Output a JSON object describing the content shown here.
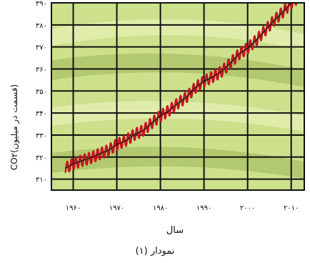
{
  "chart_data": {
    "type": "line",
    "title": "",
    "xlabel": "سال",
    "ylabel": "CO۲(قسمت در میلیون)",
    "xlim": [
      1955,
      2013
    ],
    "ylim": [
      305,
      390
    ],
    "x_ticks": [
      1960,
      1970,
      1980,
      1990,
      2000,
      2010
    ],
    "x_tick_labels": [
      "۱۹۶۰",
      "۱۹۷۰",
      "۱۹۸۰",
      "۱۹۹۰",
      "۲۰۰۰",
      "۲۰۱۰"
    ],
    "y_ticks": [
      310,
      320,
      330,
      340,
      350,
      360,
      370,
      380,
      390
    ],
    "y_tick_labels": [
      "۳۱۰",
      "۳۲۰",
      "۳۳۰",
      "۳۴۰",
      "۳۵۰",
      "۳۶۰",
      "۳۷۰",
      "۳۸۰",
      "۳۹۰"
    ],
    "grid": true,
    "series": [
      {
        "role": "monthly",
        "color": "#c8141e",
        "seasonal_amplitude": 2.6,
        "x": [
          1958.2,
          1960,
          1962,
          1964,
          1966,
          1968,
          1970,
          1972,
          1974,
          1976,
          1978,
          1980,
          1982,
          1984,
          1986,
          1988,
          1990,
          1992,
          1994,
          1996,
          1998,
          2000,
          2002,
          2004,
          2006,
          2008,
          2010,
          2012.5
        ],
        "y": [
          315,
          316.9,
          318.4,
          319.6,
          321.4,
          323.0,
          325.7,
          327.4,
          330.2,
          332.0,
          335.4,
          338.7,
          341.1,
          344.4,
          347.2,
          351.5,
          354.4,
          356.4,
          358.8,
          362.6,
          366.7,
          369.4,
          373.1,
          377.5,
          381.9,
          385.6,
          389.9,
          393.8
        ]
      },
      {
        "role": "trend",
        "color": "#1a1a1a",
        "x": [
          1958.2,
          1960,
          1962,
          1964,
          1966,
          1968,
          1970,
          1972,
          1974,
          1976,
          1978,
          1980,
          1982,
          1984,
          1986,
          1988,
          1990,
          1992,
          1994,
          1996,
          1998,
          2000,
          2002,
          2004,
          2006,
          2008,
          2010,
          2012.5
        ],
        "y": [
          315,
          316.9,
          318.4,
          319.6,
          321.4,
          323.0,
          325.7,
          327.4,
          330.2,
          332.0,
          335.4,
          338.7,
          341.1,
          344.4,
          347.2,
          351.5,
          354.4,
          356.4,
          358.8,
          362.6,
          366.7,
          369.4,
          373.1,
          377.5,
          381.9,
          385.6,
          389.9,
          393.8
        ]
      }
    ],
    "colors": {
      "plot_background": "#cde08c",
      "band_light": "#e6f0b4",
      "band_dark": "#a9c265",
      "grid": "#111111"
    }
  },
  "caption": "نمودار (۱)"
}
